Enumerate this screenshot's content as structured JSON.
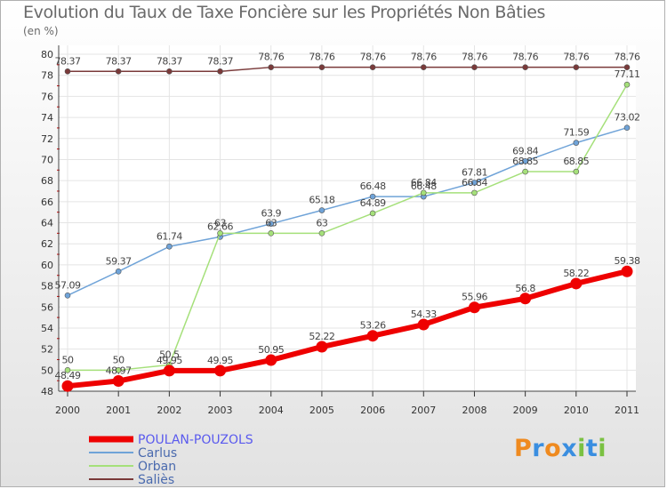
{
  "header": {
    "title": "Evolution du Taux de Taxe Foncière sur les Propriétés Non Bâties",
    "subtitle": "(en %)"
  },
  "logo": {
    "parts": [
      "P",
      "r",
      "o",
      "x",
      "i",
      "t",
      "i"
    ]
  },
  "colors": {
    "POULAN-POUZOLS": "#ee0000",
    "Carlus": "#6fa3d8",
    "Orban": "#a5e07a",
    "Saliès": "#7a3a3a"
  },
  "chart_data": {
    "type": "line",
    "title": "Evolution du Taux de Taxe Foncière sur les Propriétés Non Bâties",
    "ylabel": "(en %)",
    "xlabel": "",
    "x": [
      "2000",
      "2001",
      "2002",
      "2003",
      "2004",
      "2005",
      "2006",
      "2007",
      "2008",
      "2009",
      "2010",
      "2011"
    ],
    "ylim": [
      48,
      80
    ],
    "yticks": [
      48,
      50,
      52,
      54,
      56,
      58,
      60,
      62,
      64,
      66,
      68,
      70,
      72,
      74,
      76,
      78,
      80
    ],
    "grid": true,
    "legend_position": "bottom-left",
    "series": [
      {
        "name": "POULAN-POUZOLS",
        "values": [
          48.49,
          48.97,
          49.95,
          49.95,
          50.95,
          52.22,
          53.26,
          54.33,
          55.96,
          56.8,
          58.22,
          59.38
        ],
        "labels": [
          "48.49",
          "48.97",
          "49.95",
          "49.95",
          "50.95",
          "52.22",
          "53.26",
          "54.33",
          "55.96",
          "56.8",
          "58.22",
          "59.38"
        ]
      },
      {
        "name": "Carlus",
        "values": [
          57.09,
          59.37,
          61.74,
          62.66,
          63.9,
          65.18,
          66.48,
          66.48,
          67.81,
          69.84,
          71.59,
          73.02
        ],
        "labels": [
          "57.09",
          "59.37",
          "61.74",
          "62.66",
          "63.9",
          "65.18",
          "66.48",
          "66.48",
          "67.81",
          "69.84",
          "71.59",
          "73.02"
        ]
      },
      {
        "name": "Orban",
        "values": [
          50,
          50,
          50.5,
          63,
          63,
          63,
          64.89,
          66.84,
          66.84,
          68.85,
          68.85,
          77.11
        ],
        "labels": [
          "50",
          "50",
          "50.5",
          "63",
          "63",
          "63",
          "64.89",
          "66.84",
          "66.84",
          "68.85",
          "68.85",
          "77.11"
        ]
      },
      {
        "name": "Saliès",
        "values": [
          78.37,
          78.37,
          78.37,
          78.37,
          78.76,
          78.76,
          78.76,
          78.76,
          78.76,
          78.76,
          78.76,
          78.76
        ],
        "labels": [
          "78.37",
          "78.37",
          "78.37",
          "78.37",
          "78.76",
          "78.76",
          "78.76",
          "78.76",
          "78.76",
          "78.76",
          "78.76",
          "78.76"
        ]
      }
    ]
  }
}
